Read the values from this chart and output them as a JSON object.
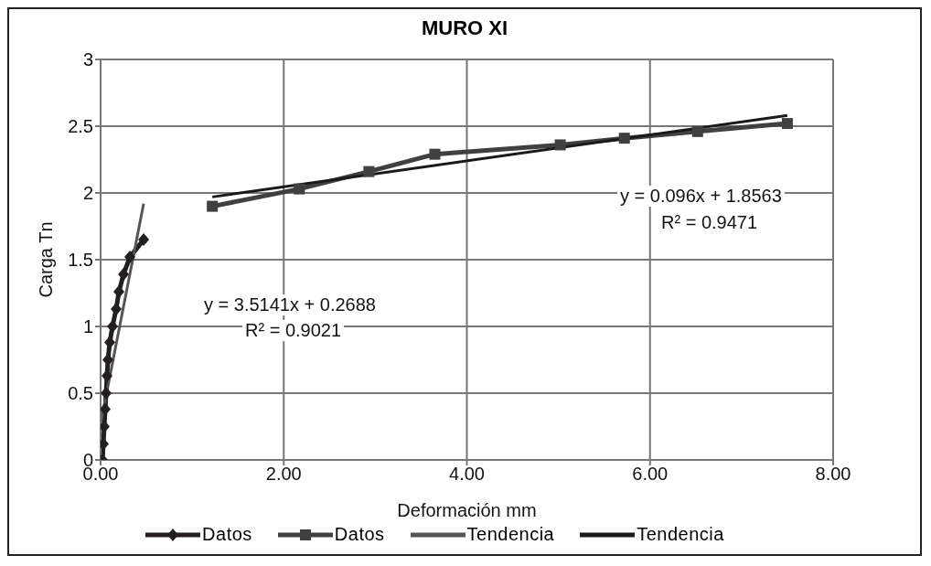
{
  "chart_data": {
    "type": "line",
    "title": "MURO XI",
    "xlabel": "Deformación mm",
    "ylabel": "Carga Tn",
    "xlim": [
      0,
      8
    ],
    "xticks": [
      {
        "value": 0,
        "label": "0.00"
      },
      {
        "value": 2,
        "label": "2.00"
      },
      {
        "value": 4,
        "label": "4.00"
      },
      {
        "value": 6,
        "label": "6.00"
      },
      {
        "value": 8,
        "label": "8.00"
      }
    ],
    "ylim": [
      0,
      3
    ],
    "yticks": [
      0,
      0.5,
      1,
      1.5,
      2,
      2.5,
      3
    ],
    "grid": true,
    "legend": "bottom",
    "series": [
      {
        "name": "Datos",
        "color": "#231f20",
        "marker": "diamond",
        "x": [
          0.02,
          0.03,
          0.04,
          0.05,
          0.06,
          0.07,
          0.08,
          0.1,
          0.13,
          0.17,
          0.2,
          0.25,
          0.32,
          0.47
        ],
        "values": [
          0,
          0.12,
          0.25,
          0.38,
          0.5,
          0.63,
          0.75,
          0.88,
          1.0,
          1.13,
          1.26,
          1.39,
          1.52,
          1.65
        ]
      },
      {
        "name": "Datos",
        "color": "#404040",
        "marker": "square",
        "x": [
          1.22,
          2.17,
          2.93,
          3.65,
          5.02,
          5.72,
          6.52,
          7.5
        ],
        "values": [
          1.9,
          2.03,
          2.16,
          2.29,
          2.36,
          2.41,
          2.46,
          2.52
        ]
      },
      {
        "name": "Tendencia",
        "color": "#555555",
        "marker": "none",
        "x": [
          0,
          0.47
        ],
        "values": [
          0.27,
          1.92
        ]
      },
      {
        "name": "Tendencia",
        "color": "#1a1a1a",
        "marker": "none",
        "x": [
          1.22,
          7.5
        ],
        "values": [
          1.97,
          2.58
        ]
      }
    ],
    "annotations": [
      "y = 3.5141x + 0.2688",
      "R² = 0.9021",
      "y = 0.096x + 1.8563",
      "R² = 0.9471"
    ]
  }
}
